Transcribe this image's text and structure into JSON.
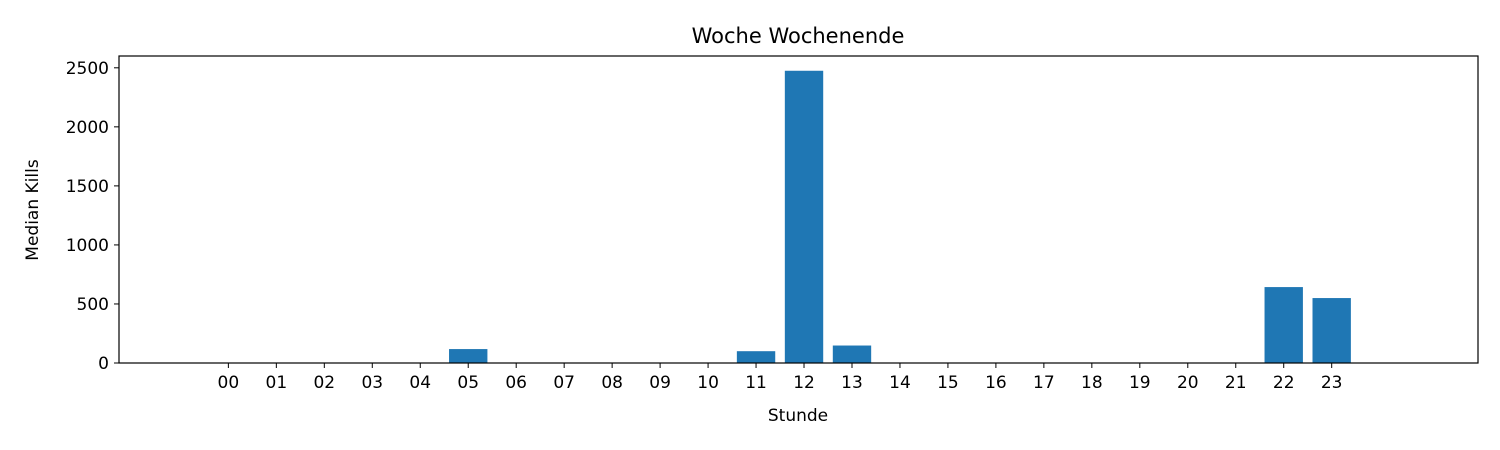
{
  "chart_data": {
    "type": "bar",
    "title": "Woche Wochenende",
    "xlabel": "Stunde",
    "ylabel": "Median Kills",
    "categories": [
      "00",
      "01",
      "02",
      "03",
      "04",
      "05",
      "06",
      "07",
      "08",
      "09",
      "10",
      "11",
      "12",
      "13",
      "14",
      "15",
      "16",
      "17",
      "18",
      "19",
      "20",
      "21",
      "22",
      "23"
    ],
    "values": [
      0,
      0,
      0,
      0,
      0,
      118,
      0,
      0,
      0,
      0,
      0,
      100,
      2475,
      148,
      0,
      0,
      0,
      0,
      0,
      0,
      0,
      0,
      643,
      550
    ],
    "ylim": [
      0,
      2600
    ],
    "yticks": [
      0,
      500,
      1000,
      1500,
      2000,
      2500
    ],
    "color": "#1f77b4",
    "grid": false,
    "legend": "none"
  }
}
